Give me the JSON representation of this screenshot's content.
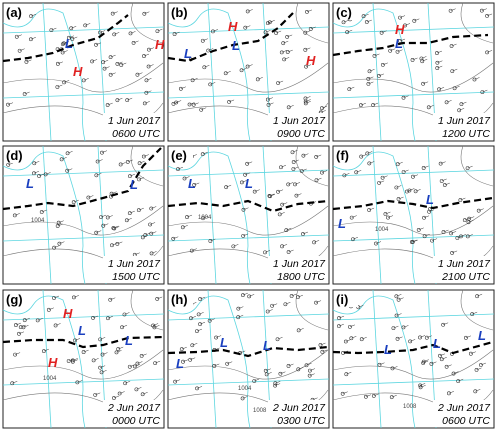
{
  "panels": [
    {
      "label": "(a)",
      "date": "1 Jun 2017",
      "time": "0600 UTC",
      "centers": [
        "L",
        "H",
        "H"
      ],
      "isobar_labels": []
    },
    {
      "label": "(b)",
      "date": "1 Jun 2017",
      "time": "0900 UTC",
      "centers": [
        "H",
        "L",
        "L",
        "H"
      ],
      "isobar_labels": []
    },
    {
      "label": "(c)",
      "date": "1 Jun 2017",
      "time": "1200 UTC",
      "centers": [
        "H",
        "L"
      ],
      "isobar_labels": []
    },
    {
      "label": "(d)",
      "date": "1 Jun 2017",
      "time": "1500 UTC",
      "centers": [
        "L",
        "L"
      ],
      "isobar_labels": [
        "1004"
      ]
    },
    {
      "label": "(e)",
      "date": "1 Jun 2017",
      "time": "1800 UTC",
      "centers": [
        "L",
        "L"
      ],
      "isobar_labels": [
        "1004"
      ]
    },
    {
      "label": "(f)",
      "date": "1 Jun 2017",
      "time": "2100 UTC",
      "centers": [
        "L",
        "L"
      ],
      "isobar_labels": [
        "1004"
      ]
    },
    {
      "label": "(g)",
      "date": "2 Jun 2017",
      "time": "0000 UTC",
      "centers": [
        "H",
        "L",
        "H",
        "L"
      ],
      "isobar_labels": [
        "1004"
      ]
    },
    {
      "label": "(h)",
      "date": "2 Jun 2017",
      "time": "0300 UTC",
      "centers": [
        "L",
        "L",
        "L"
      ],
      "isobar_labels": [
        "1004",
        "1008"
      ]
    },
    {
      "label": "(i)",
      "date": "2 Jun 2017",
      "time": "0600 UTC",
      "centers": [
        "L",
        "L",
        "L"
      ],
      "isobar_labels": [
        "1008"
      ]
    }
  ]
}
